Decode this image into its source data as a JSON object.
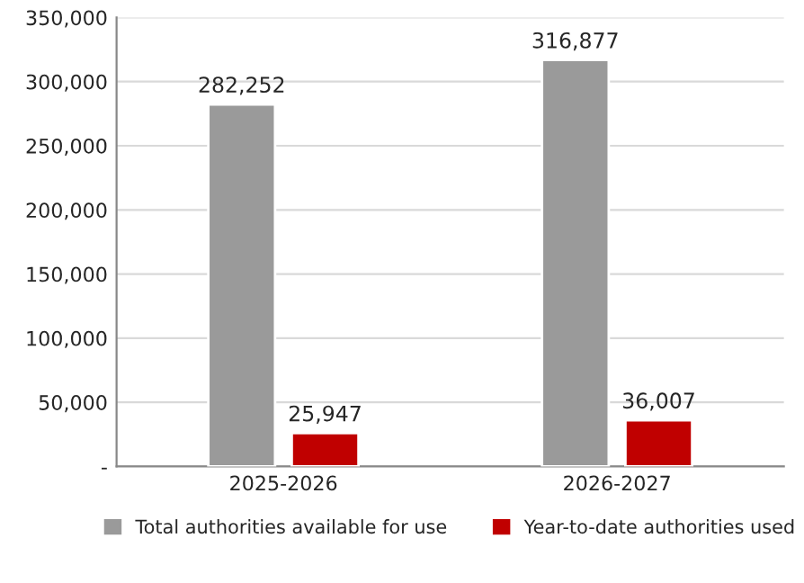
{
  "chart_data": {
    "type": "bar",
    "categories": [
      "2025-2026",
      "2026-2027"
    ],
    "series": [
      {
        "name": "Total authorities available for use",
        "color": "#9a9a9a",
        "values": [
          282252,
          316877
        ],
        "value_labels": [
          "282,252",
          "316,877"
        ]
      },
      {
        "name": "Year-to-date authorities used",
        "color": "#c00000",
        "values": [
          25947,
          36007
        ],
        "value_labels": [
          "25,947",
          "36,007"
        ]
      }
    ],
    "ylim": [
      0,
      350000
    ],
    "yticks": [
      {
        "value": 0,
        "label": "-"
      },
      {
        "value": 50000,
        "label": "50,000"
      },
      {
        "value": 100000,
        "label": "100,000"
      },
      {
        "value": 150000,
        "label": "150,000"
      },
      {
        "value": 200000,
        "label": "200,000"
      },
      {
        "value": 250000,
        "label": "250,000"
      },
      {
        "value": 300000,
        "label": "300,000"
      },
      {
        "value": 350000,
        "label": "350,000"
      }
    ],
    "grid": "y",
    "legend": "bottom"
  }
}
